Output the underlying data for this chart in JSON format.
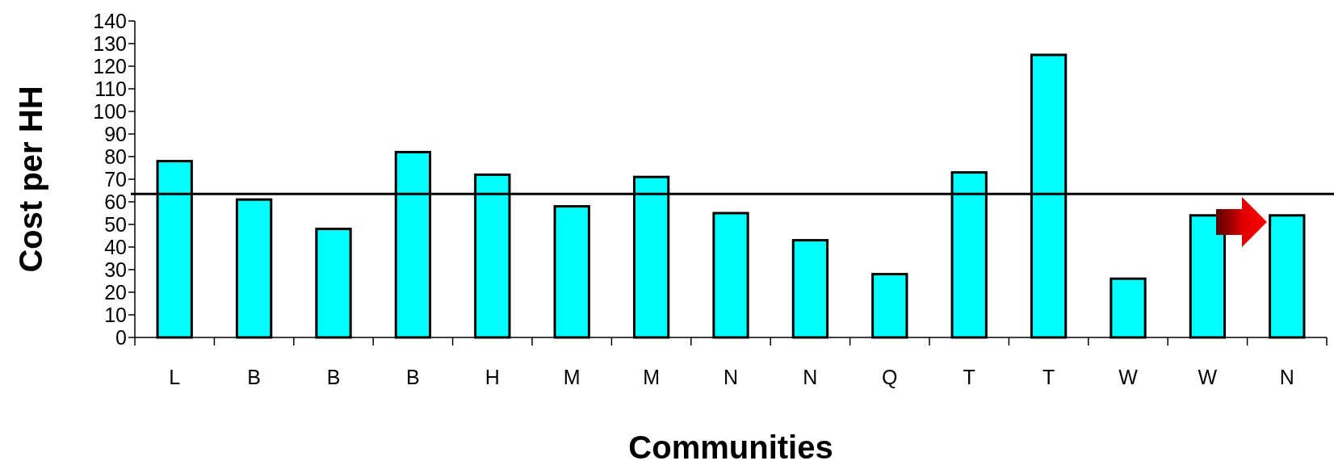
{
  "chart_data": {
    "type": "bar",
    "xlabel": "Communities",
    "ylabel": "Cost per HH",
    "categories": [
      "L",
      "B",
      "B",
      "B",
      "H",
      "M",
      "M",
      "N",
      "N",
      "Q",
      "T",
      "T",
      "W",
      "W",
      "N"
    ],
    "values": [
      78,
      61,
      48,
      82,
      72,
      58,
      71,
      55,
      43,
      28,
      73,
      125,
      26,
      54,
      54
    ],
    "color": "#00ffff",
    "ylim": [
      0,
      140
    ],
    "yticks": [
      0,
      10,
      20,
      30,
      40,
      50,
      60,
      70,
      80,
      90,
      100,
      110,
      120,
      130,
      140
    ],
    "ref_lines": [
      {
        "axis": "y",
        "value": 63.5,
        "color": "#000000"
      }
    ],
    "grid": false
  }
}
